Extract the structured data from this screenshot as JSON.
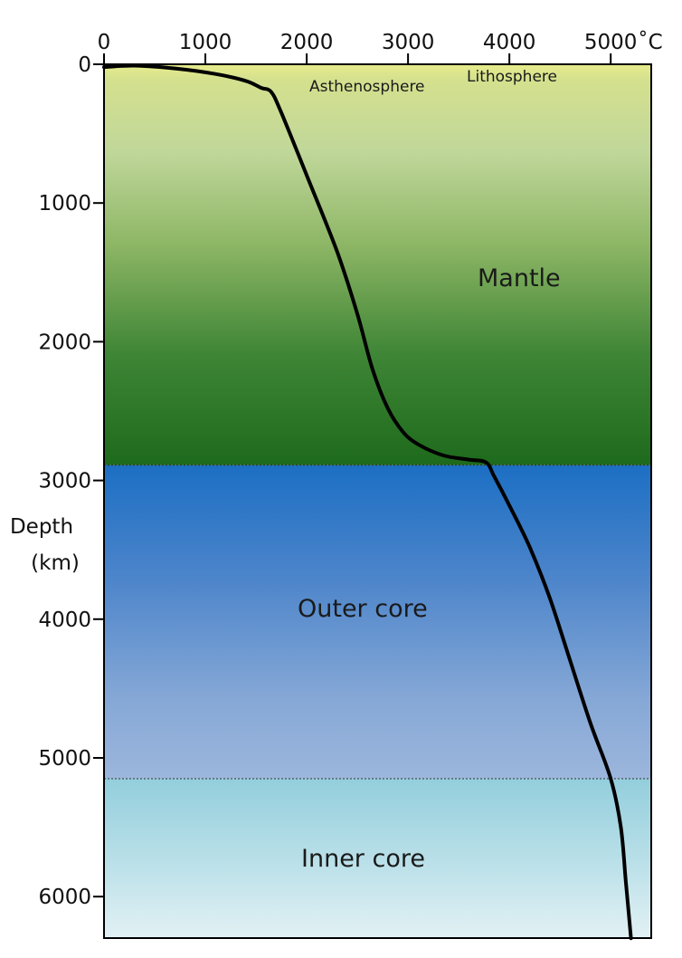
{
  "chart_data": {
    "type": "line",
    "title": "",
    "xlabel": "",
    "x_unit": "˚C",
    "ylabel": [
      "Depth",
      "(km)"
    ],
    "xlim": [
      0,
      5400
    ],
    "ylim": [
      0,
      6300
    ],
    "y_inverted": true,
    "x_ticks": [
      0,
      1000,
      2000,
      3000,
      4000,
      5000
    ],
    "x_tick_labels": [
      "0",
      "1000",
      "2000",
      "3000",
      "4000",
      "5000"
    ],
    "y_ticks": [
      0,
      1000,
      2000,
      3000,
      4000,
      5000,
      6000
    ],
    "y_tick_labels": [
      "0",
      "1000",
      "2000",
      "3000",
      "4000",
      "5000",
      "6000"
    ],
    "grid": false,
    "layers": [
      {
        "name": "Lithosphere",
        "top_km": 0,
        "bottom_km": 100
      },
      {
        "name": "Asthenosphere",
        "top_km": 100,
        "bottom_km": 400
      },
      {
        "name": "Mantle",
        "top_km": 0,
        "bottom_km": 2890
      },
      {
        "name": "Outer core",
        "top_km": 2890,
        "bottom_km": 5150
      },
      {
        "name": "Inner core",
        "top_km": 5150,
        "bottom_km": 6300
      }
    ],
    "boundaries_km": [
      2890,
      5150
    ],
    "series": [
      {
        "x": [
          0,
          300,
          700,
          1100,
          1400,
          1550,
          1650,
          1750,
          2000,
          2300,
          2500,
          2650,
          2800,
          2950,
          3100,
          3350,
          3600,
          3770,
          3850,
          4000,
          4200,
          4400,
          4600,
          4800,
          5000,
          5100,
          5150,
          5200
        ],
        "y": [
          20,
          10,
          30,
          70,
          120,
          170,
          200,
          350,
          800,
          1350,
          1800,
          2200,
          2480,
          2650,
          2740,
          2820,
          2850,
          2870,
          2970,
          3180,
          3480,
          3850,
          4300,
          4750,
          5150,
          5500,
          5900,
          6300
        ]
      }
    ]
  }
}
